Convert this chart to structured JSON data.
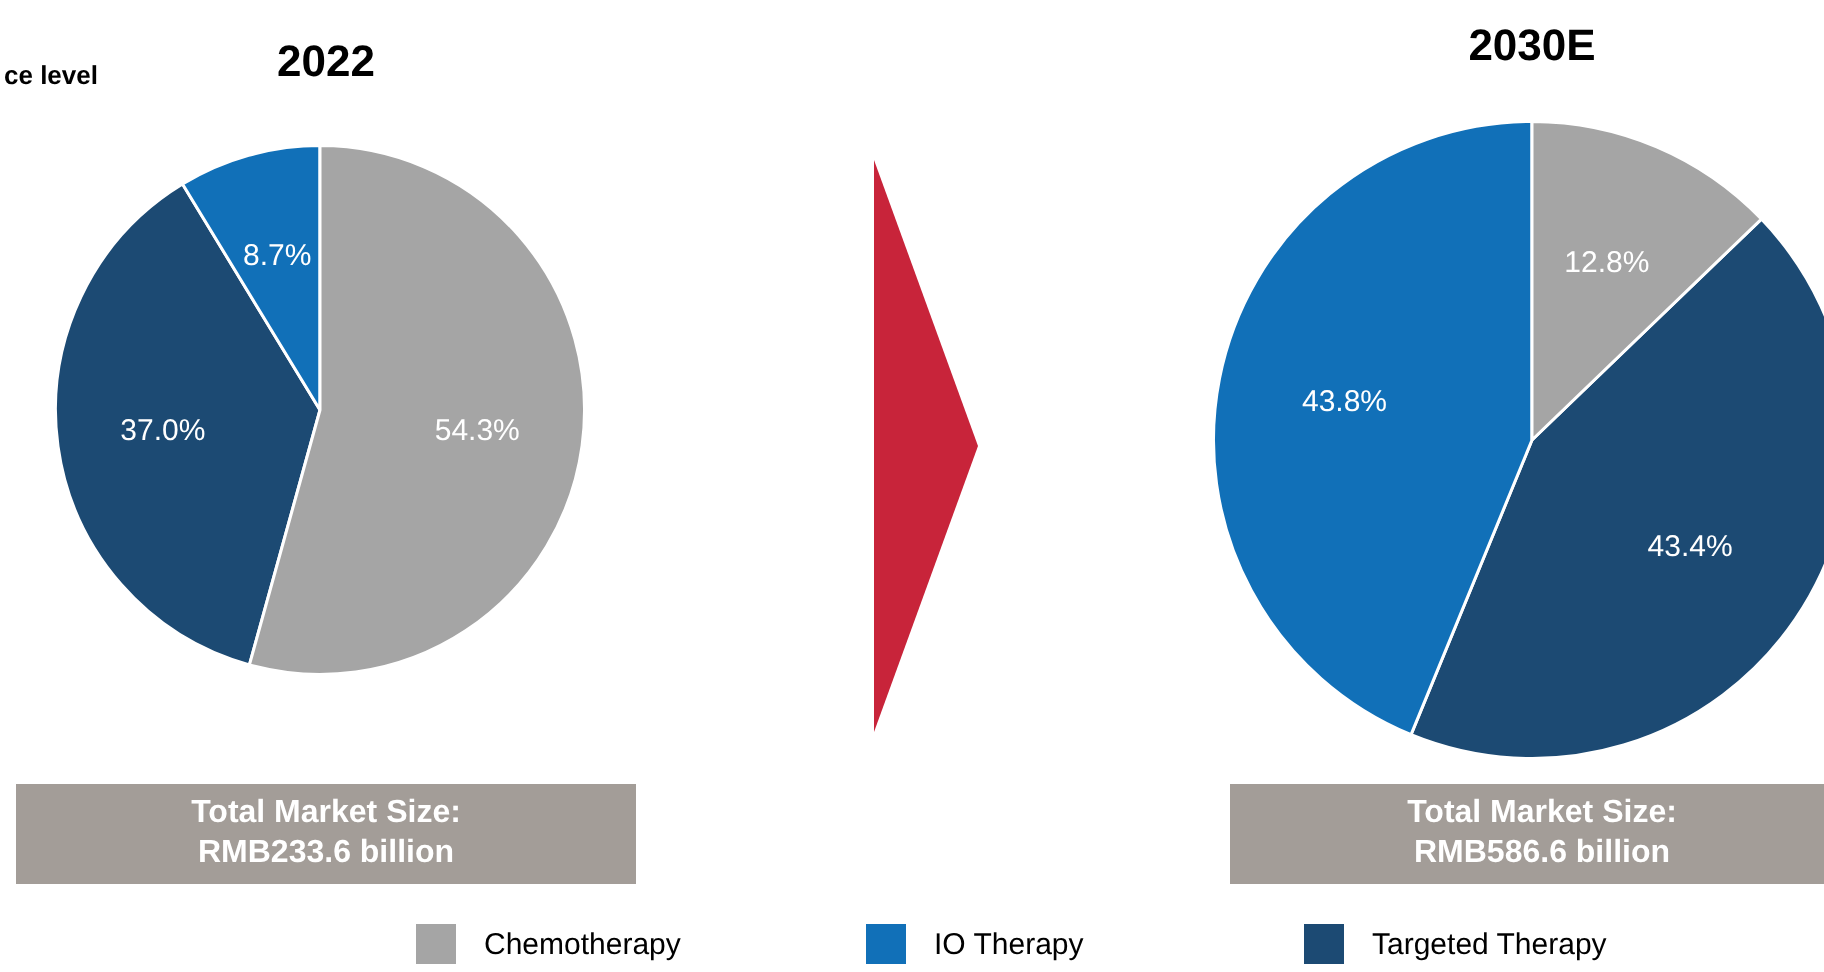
{
  "chart_data": [
    {
      "type": "pie",
      "title": "2022",
      "categories": [
        "Chemotherapy",
        "IO Therapy",
        "Targeted Therapy"
      ],
      "values": [
        54.3,
        8.7,
        37.0
      ],
      "colors": [
        "#a5a5a5",
        "#1170b8",
        "#1c4a73"
      ],
      "value_labels": [
        "54.3%",
        "8.7%",
        "37.0%"
      ],
      "legend": "bottom",
      "annotations": [
        "ce level",
        "Total Market Size:\nRMB233.6 billion"
      ]
    },
    {
      "type": "pie",
      "title": "2030E",
      "categories": [
        null,
        null,
        null
      ],
      "values": [
        12.8,
        43.8,
        43.4
      ],
      "colors": [
        "#a5a5a5",
        "#1170b8",
        "#1c4a73"
      ],
      "value_labels": [
        "12.8%",
        "43.8%",
        "43.4%"
      ],
      "annotations": [
        "Total Market Size:\nRMB586.6 billion"
      ]
    }
  ]
}
